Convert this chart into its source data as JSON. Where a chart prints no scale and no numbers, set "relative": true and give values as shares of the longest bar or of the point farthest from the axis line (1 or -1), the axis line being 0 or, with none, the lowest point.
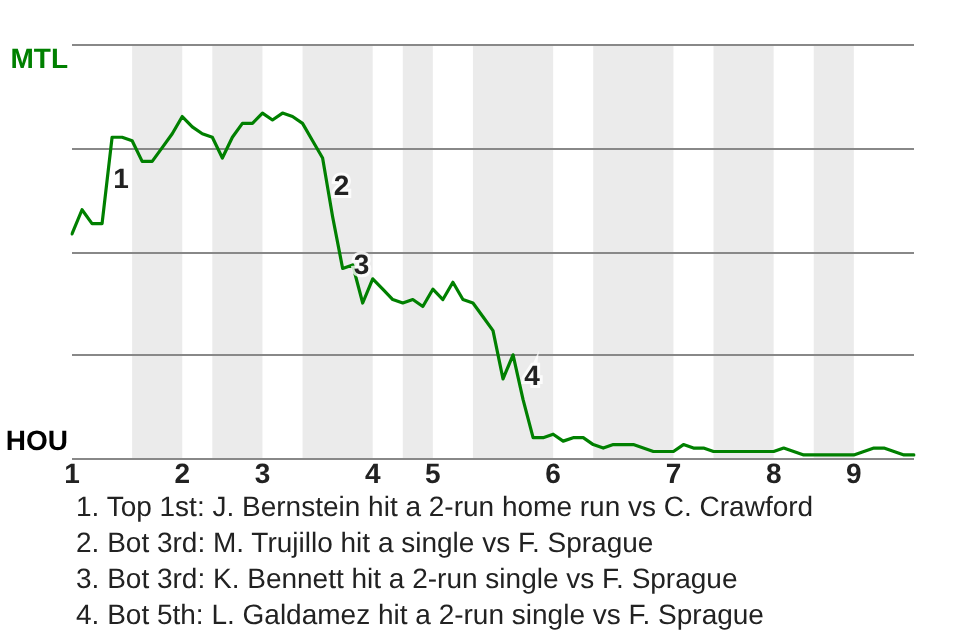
{
  "chart_data": {
    "type": "line",
    "relative": true,
    "categories": [
      "1",
      null,
      null,
      null,
      null,
      null,
      null,
      null,
      null,
      null,
      null,
      "2",
      null,
      null,
      null,
      null,
      null,
      null,
      null,
      "3",
      null,
      null,
      null,
      null,
      null,
      null,
      null,
      null,
      null,
      null,
      "4",
      null,
      null,
      null,
      null,
      null,
      "5",
      null,
      null,
      null,
      null,
      null,
      null,
      null,
      null,
      null,
      null,
      null,
      "6",
      null,
      null,
      null,
      null,
      null,
      null,
      null,
      null,
      null,
      null,
      null,
      "7",
      null,
      null,
      null,
      null,
      null,
      null,
      null,
      null,
      null,
      "8",
      null,
      null,
      null,
      null,
      null,
      null,
      null,
      "9",
      null,
      null,
      null,
      null,
      null,
      null
    ],
    "series": [
      {
        "color": "#008000",
        "values": [
          0.65,
          0.72,
          0.68,
          0.68,
          0.93,
          0.93,
          0.92,
          0.86,
          0.86,
          0.9,
          0.94,
          0.99,
          0.96,
          0.94,
          0.93,
          0.87,
          0.93,
          0.97,
          0.97,
          1,
          0.98,
          1,
          0.99,
          0.97,
          0.92,
          0.87,
          0.7,
          0.55,
          0.56,
          0.45,
          0.52,
          0.49,
          0.46,
          0.45,
          0.46,
          0.44,
          0.49,
          0.46,
          0.51,
          0.46,
          0.45,
          0.41,
          0.37,
          0.23,
          0.3,
          0.17,
          0.06,
          0.06,
          0.07,
          0.05,
          0.06,
          0.06,
          0.04,
          0.03,
          0.04,
          0.04,
          0.04,
          0.03,
          0.02,
          0.02,
          0.02,
          0.04,
          0.03,
          0.03,
          0.02,
          0.02,
          0.02,
          0.02,
          0.02,
          0.02,
          0.02,
          0.03,
          0.02,
          0.01,
          0.01,
          0.01,
          0.01,
          0.01,
          0.01,
          0.02,
          0.03,
          0.03,
          0.02,
          0.01,
          0.01
        ],
        "colors": [
          "#008000",
          "#008000",
          "#008000",
          "#008000",
          "#008000",
          "#008000",
          "#000000",
          "#000000",
          "#000000",
          "#000000",
          "#000000",
          "#008000",
          "#008000",
          "#008000",
          "#000000",
          "#000000",
          "#000000",
          "#000000",
          "#000000",
          "#008000",
          "#008000",
          "#008000",
          "#008000",
          "#000000",
          "#000000",
          "#000000",
          "#000000",
          "#000000",
          "#000000",
          "#000000",
          "#008000",
          "#008000",
          "#008000",
          "#000000",
          "#000000",
          "#000000",
          "#008000",
          "#008000",
          "#008000",
          "#008000",
          "#000000",
          "#000000",
          "#000000",
          "#000000",
          "#000000",
          "#000000",
          "#000000",
          "#000000",
          "#008000",
          "#008000",
          "#008000",
          "#008000",
          "#000000",
          "#000000",
          "#000000",
          "#000000",
          "#000000",
          "#000000",
          "#000000",
          "#000000",
          "#008000",
          "#008000",
          "#008000",
          "#008000",
          "#000000",
          "#000000",
          "#000000",
          "#000000",
          "#000000",
          "#000000",
          "#008000",
          "#008000",
          "#008000",
          "#008000",
          "#000000",
          "#000000",
          "#000000",
          "#000000",
          "#008000",
          "#008000",
          "#008000",
          "#008000",
          "#008000",
          "#008000",
          "#008000"
        ]
      }
    ],
    "grid": "y",
    "legend": false,
    "marker": "none",
    "line_style": "solid",
    "annotations": [
      "MTL",
      "HOU",
      "1",
      "2",
      "3",
      "4",
      "1. Top 1st: J. Bernstein hit a 2-run home run vs C. Crawford",
      "2. Bot 3rd: M. Trujillo hit a single vs F. Sprague",
      "3. Bot 3rd: K. Bennett hit a 2-run single vs F. Sprague",
      "4. Bot 5th: L. Galdamez hit a 2-run single vs F. Sprague"
    ]
  }
}
